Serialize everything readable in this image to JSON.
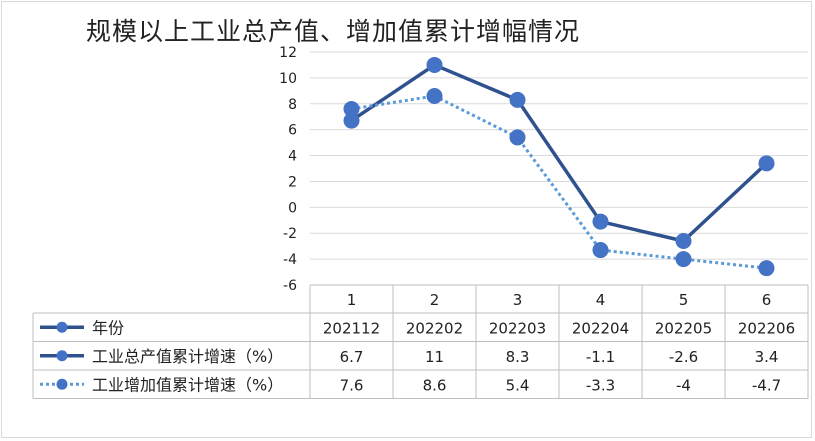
{
  "chart_data": {
    "type": "line",
    "title": "规模以上工业总产值、增加值累计增幅情况",
    "categories": [
      "1",
      "2",
      "3",
      "4",
      "5",
      "6"
    ],
    "ylim": [
      -6,
      12
    ],
    "yticks": [
      -6,
      -4,
      -2,
      0,
      2,
      4,
      6,
      8,
      10,
      12
    ],
    "grid": true,
    "legend": "table-left",
    "table_rows": [
      {
        "label": "年份",
        "values": [
          "202112",
          "202202",
          "202203",
          "202204",
          "202205",
          "202206"
        ],
        "style": "solid",
        "color": "#2f528f"
      },
      {
        "label": "工业总产值累计增速（%）",
        "values": [
          "6.7",
          "11",
          "8.3",
          "-1.1",
          "-2.6",
          "3.4"
        ],
        "style": "solid",
        "color": "#2f528f"
      },
      {
        "label": "工业增加值累计增速（%）",
        "values": [
          "7.6",
          "8.6",
          "5.4",
          "-3.3",
          "-4",
          "-4.7"
        ],
        "style": "dotted",
        "color": "#5b9bd5"
      }
    ],
    "series": [
      {
        "name": "工业总产值累计增速（%）",
        "values": [
          6.7,
          11,
          8.3,
          -1.1,
          -2.6,
          3.4
        ],
        "line_color": "#2f528f",
        "marker_color": "#4472c4",
        "style": "solid"
      },
      {
        "name": "工业增加值累计增速（%）",
        "values": [
          7.6,
          8.6,
          5.4,
          -3.3,
          -4,
          -4.7
        ],
        "line_color": "#5b9bd5",
        "marker_color": "#4472c4",
        "style": "dotted"
      }
    ]
  }
}
